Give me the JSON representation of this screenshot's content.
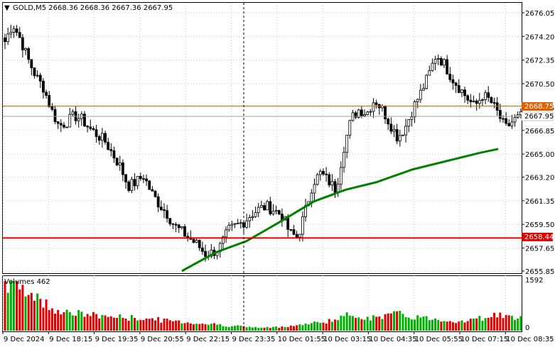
{
  "header": {
    "symbol_line": "GOLD,M5  2668.36 2668.36 2667.36 2667.95",
    "volumes_label": "Volumes 462"
  },
  "colors": {
    "background": "#ffffff",
    "grid": "#c8c8c8",
    "candle": "#000000",
    "ma": "#008000",
    "current_price_line": "#e06000",
    "support_line": "#e00000",
    "volume_up": "#00b000",
    "volume_down": "#e00000"
  },
  "price_axis": {
    "ticks": [
      "2676.05",
      "2674.20",
      "2672.35",
      "2670.50",
      "2668.65",
      "2666.85",
      "2665.00",
      "2663.20",
      "2661.35",
      "2659.50",
      "2657.65",
      "2655.85"
    ],
    "range": [
      2655.85,
      2676.05
    ]
  },
  "price_tags": {
    "current_close": "2667.95",
    "orange_level": "2668.75",
    "red_level": "2658.44"
  },
  "volume_axis": {
    "max_label": "1592",
    "min_label": "0"
  },
  "time_axis": {
    "labels": [
      "9 Dec 2024",
      "9 Dec 18:15",
      "9 Dec 19:35",
      "9 Dec 20:55",
      "9 Dec 22:15",
      "9 Dec 23:35",
      "10 Dec 01:55",
      "10 Dec 03:15",
      "10 Dec 04:35",
      "10 Dec 05:55",
      "10 Dec 07:15",
      "10 Dec 08:35"
    ]
  },
  "chart_data": {
    "type": "candlestick",
    "symbol": "GOLD",
    "timeframe": "M5",
    "ylim": [
      2655.85,
      2676.05
    ],
    "close_path": [
      2673.8,
      2675.2,
      2674.0,
      2672.4,
      2671.1,
      2670.2,
      2668.5,
      2667.2,
      2667.5,
      2668.0,
      2667.7,
      2667.0,
      2666.5,
      2666.0,
      2665.0,
      2664.0,
      2662.5,
      2662.8,
      2663.3,
      2662.0,
      2661.1,
      2660.4,
      2659.4,
      2658.9,
      2658.4,
      2657.9,
      2657.2,
      2657.3,
      2657.8,
      2659.0,
      2659.4,
      2659.7,
      2660.3,
      2660.7,
      2660.9,
      2660.6,
      2660.2,
      2658.8,
      2658.5,
      2660.5,
      2662.8,
      2663.5,
      2662.9,
      2662.2,
      2665.5,
      2667.8,
      2668.5,
      2668.2,
      2669.3,
      2668.5,
      2667.4,
      2666.3,
      2667.1,
      2668.6,
      2669.8,
      2671.1,
      2672.8,
      2672.1,
      2671.0,
      2670.2,
      2669.4,
      2668.7,
      2669.6,
      2669.2,
      2668.2,
      2667.0,
      2667.6,
      2667.95
    ],
    "moving_average": [
      [
        0.345,
        2655.85
      ],
      [
        0.41,
        2657.3
      ],
      [
        0.47,
        2658.2
      ],
      [
        0.53,
        2659.6
      ],
      [
        0.6,
        2661.3
      ],
      [
        0.66,
        2662.2
      ],
      [
        0.72,
        2662.8
      ],
      [
        0.79,
        2663.8
      ],
      [
        0.86,
        2664.5
      ],
      [
        0.92,
        2665.1
      ],
      [
        0.955,
        2665.4
      ]
    ],
    "volume_max": 1592,
    "volumes_relative": [
      0.98,
      0.95,
      0.88,
      0.8,
      0.7,
      0.55,
      0.48,
      0.42,
      0.38,
      0.35,
      0.33,
      0.32,
      0.3,
      0.3,
      0.28,
      0.27,
      0.26,
      0.25,
      0.25,
      0.24,
      0.22,
      0.2,
      0.2,
      0.18,
      0.16,
      0.15,
      0.14,
      0.13,
      0.12,
      0.1,
      0.1,
      0.08,
      0.07,
      0.06,
      0.06,
      0.07,
      0.08,
      0.1,
      0.11,
      0.13,
      0.15,
      0.17,
      0.2,
      0.22,
      0.28,
      0.32,
      0.3,
      0.27,
      0.25,
      0.3,
      0.32,
      0.33,
      0.31,
      0.28,
      0.26,
      0.25,
      0.24,
      0.22,
      0.2,
      0.19,
      0.2,
      0.22,
      0.26,
      0.3,
      0.33,
      0.29,
      0.25,
      0.24
    ],
    "annotations": [
      "vertical dashed line near 10 Dec 00:00"
    ]
  }
}
